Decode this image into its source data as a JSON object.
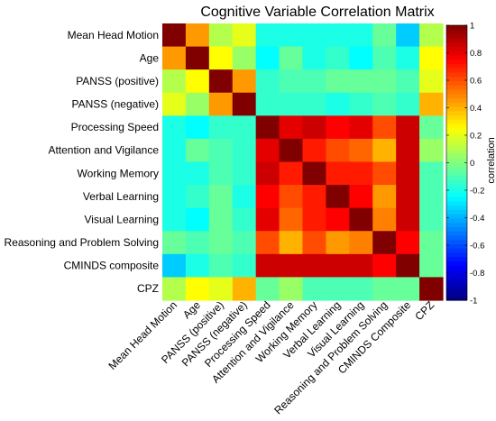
{
  "chart_data": {
    "type": "heatmap",
    "title": "Cognitive Variable Correlation Matrix",
    "variables": [
      "Mean Head Motion",
      "Age",
      "PANSS (positive)",
      "PANSS (negative)",
      "Processing Speed",
      "Attention and Vigilance",
      "Working Memory",
      "Verbal Learning",
      "Visual Learning",
      "Reasoning and Problem Solving",
      "CMINDS composite",
      "CPZ"
    ],
    "x_tick_labels": [
      "Mean Head Motion",
      "Age",
      "PANSS (positive)",
      "PANSS (negative)",
      "Processing Speed",
      "Attention and Vigilance",
      "Working Memory",
      "Verbal Learning",
      "Visual Learning",
      "Reasoning and Problem Solving",
      "CMINDS Composite",
      "CPZ"
    ],
    "matrix": [
      [
        1.0,
        0.45,
        0.1,
        0.2,
        -0.2,
        -0.2,
        -0.2,
        -0.2,
        -0.2,
        -0.05,
        -0.35,
        0.1
      ],
      [
        0.45,
        1.0,
        0.25,
        0.05,
        -0.25,
        -0.05,
        -0.2,
        -0.15,
        -0.25,
        -0.1,
        -0.2,
        0.25
      ],
      [
        0.1,
        0.25,
        1.0,
        0.45,
        -0.15,
        -0.1,
        -0.1,
        -0.05,
        -0.05,
        -0.05,
        -0.1,
        0.2
      ],
      [
        0.2,
        0.05,
        0.45,
        1.0,
        -0.15,
        -0.15,
        -0.15,
        -0.2,
        -0.15,
        -0.1,
        -0.15,
        0.4
      ],
      [
        -0.2,
        -0.25,
        -0.15,
        -0.15,
        1.0,
        0.8,
        0.85,
        0.75,
        0.8,
        0.6,
        0.85,
        -0.05
      ],
      [
        -0.2,
        -0.05,
        -0.1,
        -0.15,
        0.8,
        1.0,
        0.7,
        0.6,
        0.55,
        0.4,
        0.85,
        0.05
      ],
      [
        -0.2,
        -0.2,
        -0.1,
        -0.15,
        0.85,
        0.7,
        1.0,
        0.7,
        0.7,
        0.6,
        0.85,
        -0.1
      ],
      [
        -0.2,
        -0.15,
        -0.05,
        -0.2,
        0.75,
        0.6,
        0.7,
        1.0,
        0.75,
        0.45,
        0.85,
        -0.1
      ],
      [
        -0.2,
        -0.25,
        -0.05,
        -0.15,
        0.8,
        0.55,
        0.7,
        0.75,
        1.0,
        0.5,
        0.85,
        -0.1
      ],
      [
        -0.05,
        -0.1,
        -0.05,
        -0.1,
        0.6,
        0.4,
        0.6,
        0.45,
        0.5,
        1.0,
        0.75,
        -0.05
      ],
      [
        -0.35,
        -0.2,
        -0.1,
        -0.15,
        0.85,
        0.85,
        0.85,
        0.85,
        0.85,
        0.75,
        1.0,
        -0.05
      ],
      [
        0.1,
        0.25,
        0.2,
        0.4,
        -0.05,
        0.05,
        -0.1,
        -0.1,
        -0.1,
        -0.05,
        -0.05,
        1.0
      ]
    ],
    "colorbar": {
      "label": "correlation",
      "range": [
        -1,
        1
      ],
      "ticks": [
        1,
        0.8,
        0.6,
        0.4,
        0.2,
        0,
        -0.2,
        -0.4,
        -0.6,
        -0.8,
        -1
      ],
      "colormap": "jet"
    }
  }
}
